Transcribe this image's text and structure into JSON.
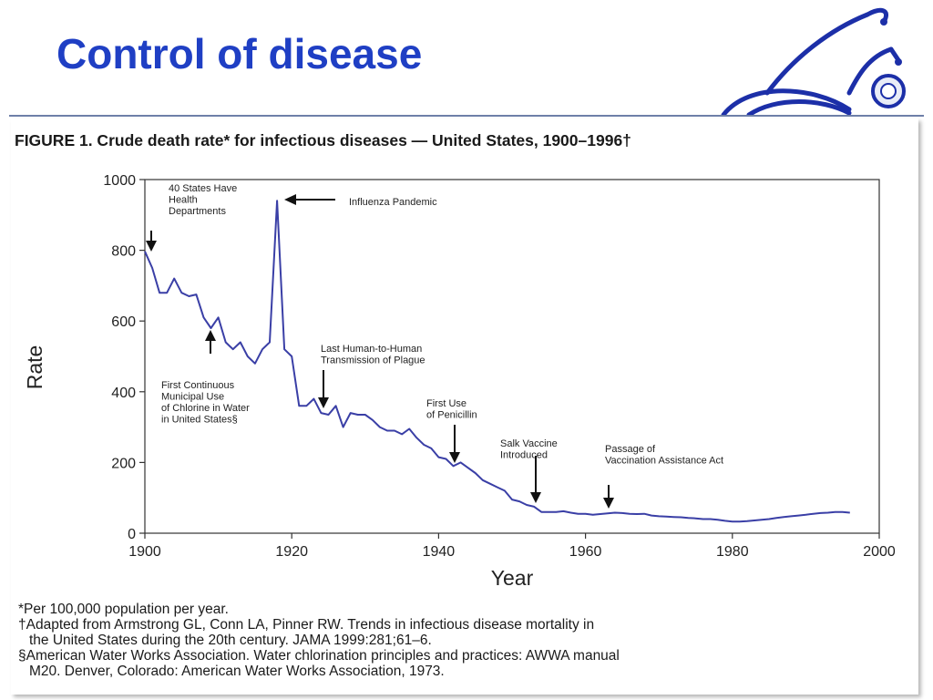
{
  "slide": {
    "title": "Control of disease"
  },
  "figure": {
    "heading": "FIGURE 1. Crude death rate* for infectious diseases — United States, 1900–1996†"
  },
  "chart_data": {
    "type": "line",
    "title": "FIGURE 1. Crude death rate* for infectious diseases — United States, 1900–1996†",
    "xlabel": "Year",
    "ylabel": "Rate",
    "xlim": [
      1900,
      2000
    ],
    "ylim": [
      0,
      1000
    ],
    "x_ticks": [
      1900,
      1920,
      1940,
      1960,
      1980,
      2000
    ],
    "y_ticks": [
      0,
      200,
      400,
      600,
      800,
      1000
    ],
    "grid": false,
    "line_color": "#3a3fa6",
    "series": [
      {
        "x": [
          1900,
          1901,
          1902,
          1903,
          1904,
          1905,
          1906,
          1907,
          1908,
          1909,
          1910,
          1911,
          1912,
          1913,
          1914,
          1915,
          1916,
          1917,
          1918,
          1919,
          1920,
          1921,
          1922,
          1923,
          1924,
          1925,
          1926,
          1927,
          1928,
          1929,
          1930,
          1931,
          1932,
          1933,
          1934,
          1935,
          1936,
          1937,
          1938,
          1939,
          1940,
          1941,
          1942,
          1943,
          1944,
          1945,
          1946,
          1947,
          1948,
          1949,
          1950,
          1951,
          1952,
          1953,
          1954,
          1955,
          1956,
          1957,
          1958,
          1959,
          1960,
          1961,
          1962,
          1963,
          1964,
          1965,
          1966,
          1967,
          1968,
          1969,
          1970,
          1971,
          1972,
          1973,
          1974,
          1975,
          1976,
          1977,
          1978,
          1979,
          1980,
          1981,
          1982,
          1983,
          1984,
          1985,
          1986,
          1987,
          1988,
          1989,
          1990,
          1991,
          1992,
          1993,
          1994,
          1995,
          1996
        ],
        "y": [
          797,
          750,
          680,
          680,
          720,
          680,
          670,
          675,
          610,
          580,
          610,
          540,
          520,
          540,
          500,
          480,
          520,
          540,
          940,
          520,
          500,
          360,
          360,
          380,
          340,
          335,
          360,
          300,
          340,
          335,
          335,
          320,
          300,
          290,
          290,
          280,
          295,
          270,
          250,
          240,
          215,
          210,
          190,
          200,
          185,
          170,
          150,
          140,
          130,
          120,
          95,
          90,
          80,
          75,
          60,
          60,
          60,
          62,
          58,
          55,
          55,
          52,
          54,
          56,
          58,
          57,
          55,
          54,
          55,
          50,
          48,
          47,
          46,
          45,
          43,
          42,
          40,
          40,
          38,
          35,
          33,
          33,
          34,
          36,
          38,
          40,
          43,
          46,
          48,
          50,
          52,
          55,
          57,
          58,
          60,
          60,
          58
        ]
      }
    ],
    "annotations": [
      {
        "text": "40 States Have Health Departments",
        "x": 1901,
        "y": 797
      },
      {
        "text": "Influenza Pandemic",
        "x": 1918,
        "y": 940
      },
      {
        "text": "First Continuous Municipal Use of Chlorine in Water in United States§",
        "x": 1908,
        "y": 580
      },
      {
        "text": "Last Human-to-Human Transmission of Plague",
        "x": 1924,
        "y": 340
      },
      {
        "text": "First Use of Penicillin",
        "x": 1942,
        "y": 190
      },
      {
        "text": "Salk Vaccine Introduced",
        "x": 1955,
        "y": 60
      },
      {
        "text": "Passage of Vaccination Assistance Act",
        "x": 1962,
        "y": 54
      }
    ],
    "annotation_lines": [
      [
        "40 States Have",
        "Health",
        "Departments"
      ],
      [
        "Influenza Pandemic"
      ],
      [
        "First Continuous",
        "Municipal Use",
        "of Chlorine in Water",
        "in United States§"
      ],
      [
        "Last Human-to-Human",
        "Transmission of Plague"
      ],
      [
        "First Use",
        "of Penicillin"
      ],
      [
        "Salk Vaccine",
        "Introduced"
      ],
      [
        "Passage of",
        "Vaccination Assistance Act"
      ]
    ]
  },
  "footnotes": [
    {
      "text": "*Per 100,000 population per year."
    },
    {
      "text": "†Adapted from Armstrong GL, Conn LA, Pinner RW. Trends in infectious disease mortality in",
      "cont": "the United States during the 20th century. JAMA 1999:281;61–6."
    },
    {
      "text": "§American Water Works Association. Water chlorination principles and practices: AWWA manual",
      "cont": "M20. Denver, Colorado: American Water Works Association, 1973."
    }
  ],
  "colors": {
    "title": "#1f3fc4",
    "line": "#3a3fa6",
    "stethoscope": "#1c2fa8"
  },
  "icons": {
    "stethoscope": "stethoscope-icon"
  }
}
